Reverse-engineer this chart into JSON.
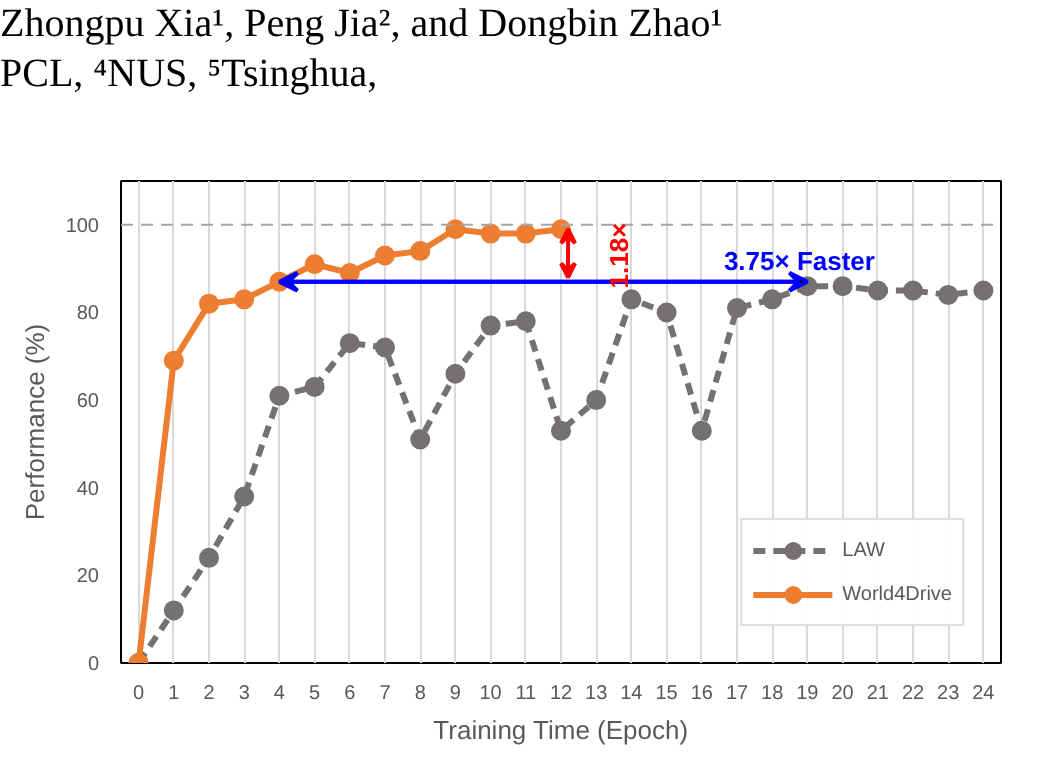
{
  "chart_data": {
    "type": "line",
    "xlabel": "Training Time (Epoch)",
    "ylabel": "Performance (%)",
    "x": [
      0,
      1,
      2,
      3,
      4,
      5,
      6,
      7,
      8,
      9,
      10,
      11,
      12,
      13,
      14,
      15,
      16,
      17,
      18,
      19,
      20,
      21,
      22,
      23,
      24
    ],
    "series": [
      {
        "name": "LAW",
        "color": "#767171",
        "line_style": "dashed",
        "values": [
          0,
          12,
          24,
          38,
          61,
          63,
          73,
          72,
          51,
          66,
          77,
          78,
          53,
          60,
          83,
          80,
          53,
          81,
          83,
          86,
          86,
          85,
          85,
          84,
          85
        ]
      },
      {
        "name": "World4Drive",
        "color": "#ed7d31",
        "line_style": "solid",
        "x": [
          0,
          1,
          2,
          3,
          4,
          5,
          6,
          7,
          8,
          9,
          10,
          11,
          12
        ],
        "values": [
          0,
          69,
          82,
          83,
          87,
          91,
          89,
          93,
          94,
          99,
          98,
          98,
          99
        ]
      }
    ],
    "xlim": [
      -0.5,
      24.5
    ],
    "ylim": [
      0,
      110
    ],
    "xticks": [
      0,
      1,
      2,
      3,
      4,
      5,
      6,
      7,
      8,
      9,
      10,
      11,
      12,
      13,
      14,
      15,
      16,
      17,
      18,
      19,
      20,
      21,
      22,
      23,
      24
    ],
    "yticks": [
      0,
      20,
      40,
      60,
      80,
      100
    ],
    "grid": "x",
    "legend": "bottom right",
    "marker": "circle",
    "ref_lines": [
      {
        "axis": "y",
        "value": 100,
        "color": "#a6a6a6",
        "line_style": "dashed"
      }
    ],
    "annotations": [
      "Zhongpu Xia¹, Peng Jia², and Dongbin Zhao¹",
      "PCL, ⁴NUS, ⁵Tsinghua,",
      {
        "text": "1.18×",
        "x": 12,
        "y": 99
      },
      {
        "text": "3.75× Faster",
        "x": 19,
        "y": 87
      }
    ]
  }
}
